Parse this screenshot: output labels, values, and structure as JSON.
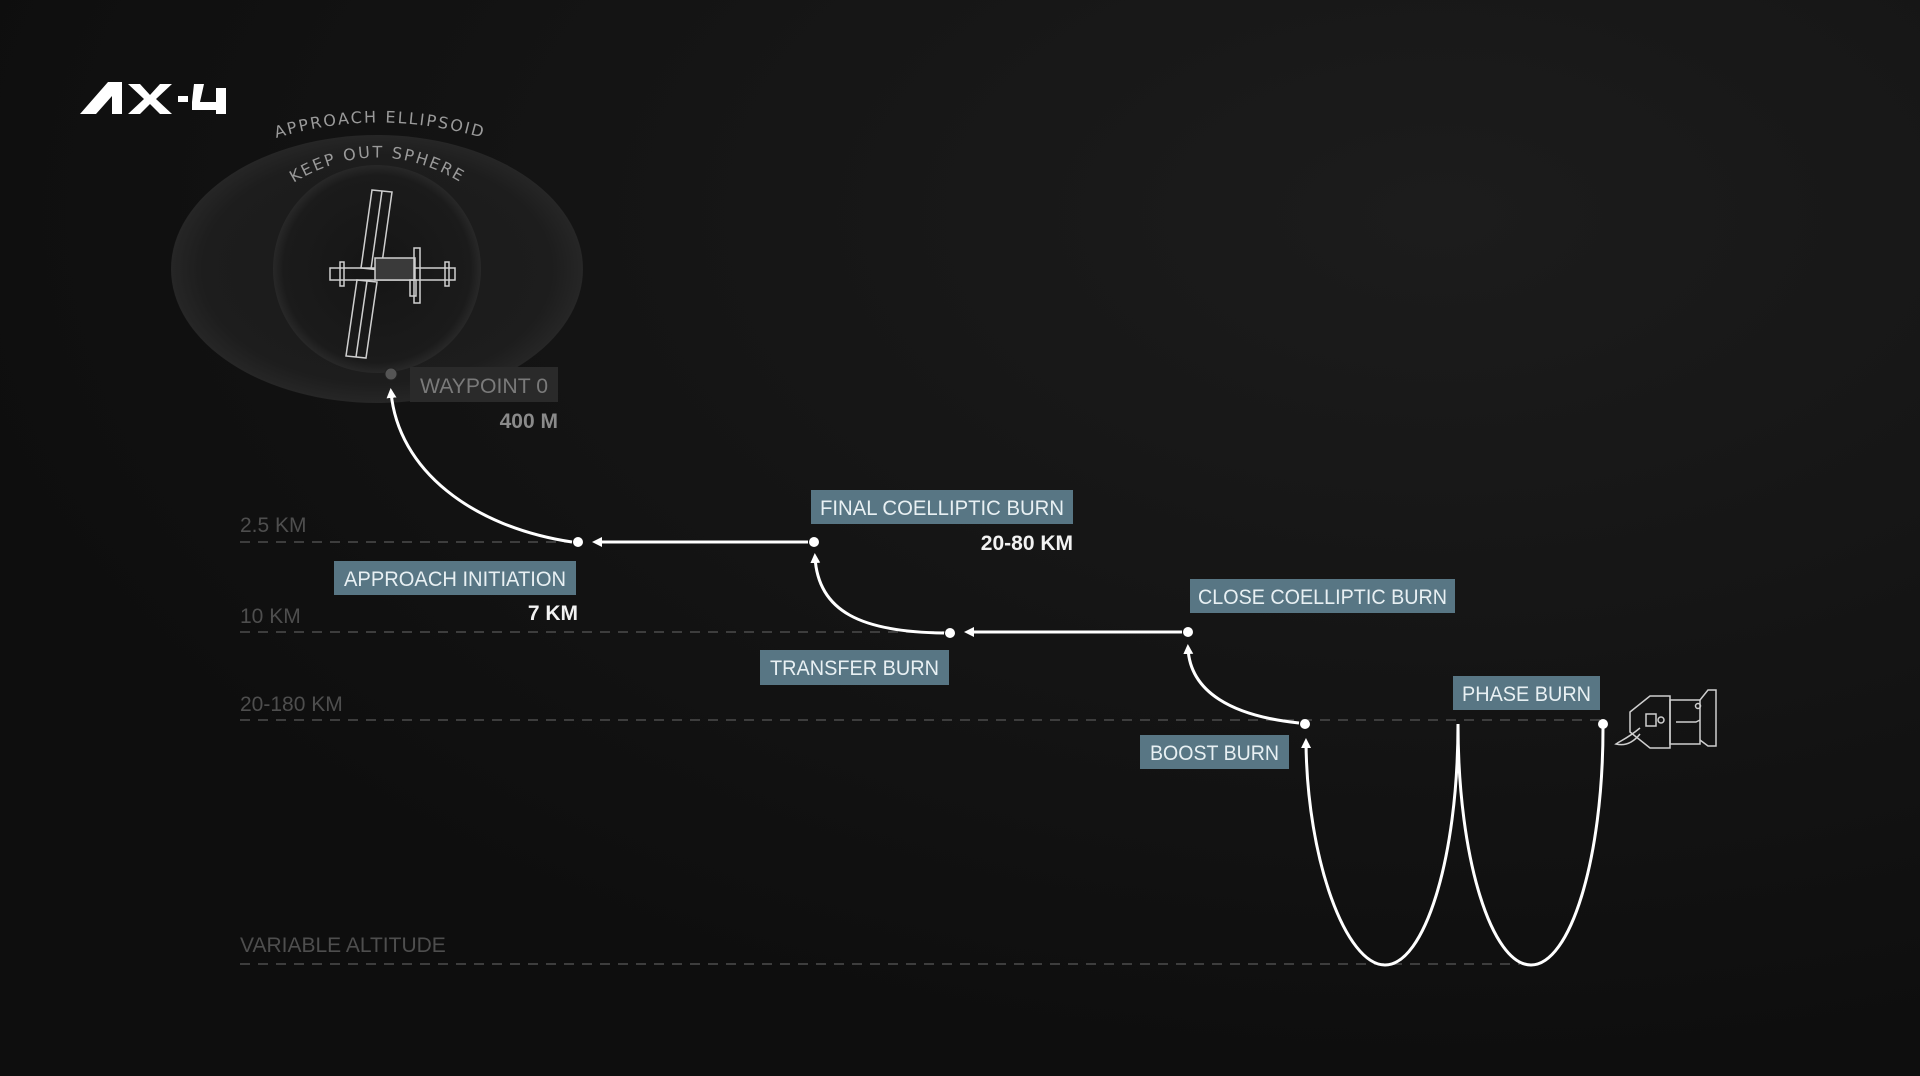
{
  "logo": {
    "text": "AX-4"
  },
  "station": {
    "approach_ellipsoid_label": "APPROACH ELLIPSOID",
    "keep_out_sphere_label": "KEEP OUT SPHERE"
  },
  "altitude_levels": [
    {
      "label": "2.5 KM"
    },
    {
      "label": "10 KM"
    },
    {
      "label": "20-180 KM"
    },
    {
      "label": "VARIABLE ALTITUDE"
    }
  ],
  "waypoints": {
    "waypoint0": {
      "label": "WAYPOINT 0",
      "distance": "400 M"
    },
    "approach_initiation": {
      "label": "APPROACH INITIATION",
      "distance": "7 KM"
    },
    "final_coelliptic": {
      "label": "FINAL COELLIPTIC BURN",
      "distance": "20-80 KM"
    },
    "transfer": {
      "label": "TRANSFER BURN"
    },
    "close_coelliptic": {
      "label": "CLOSE COELLIPTIC BURN"
    },
    "boost": {
      "label": "BOOST BURN"
    },
    "phase": {
      "label": "PHASE BURN"
    }
  },
  "colors": {
    "background": "#111111",
    "label_box": "#587684",
    "label_box_inactive": "#2a2a2a",
    "trajectory": "#ffffff"
  }
}
